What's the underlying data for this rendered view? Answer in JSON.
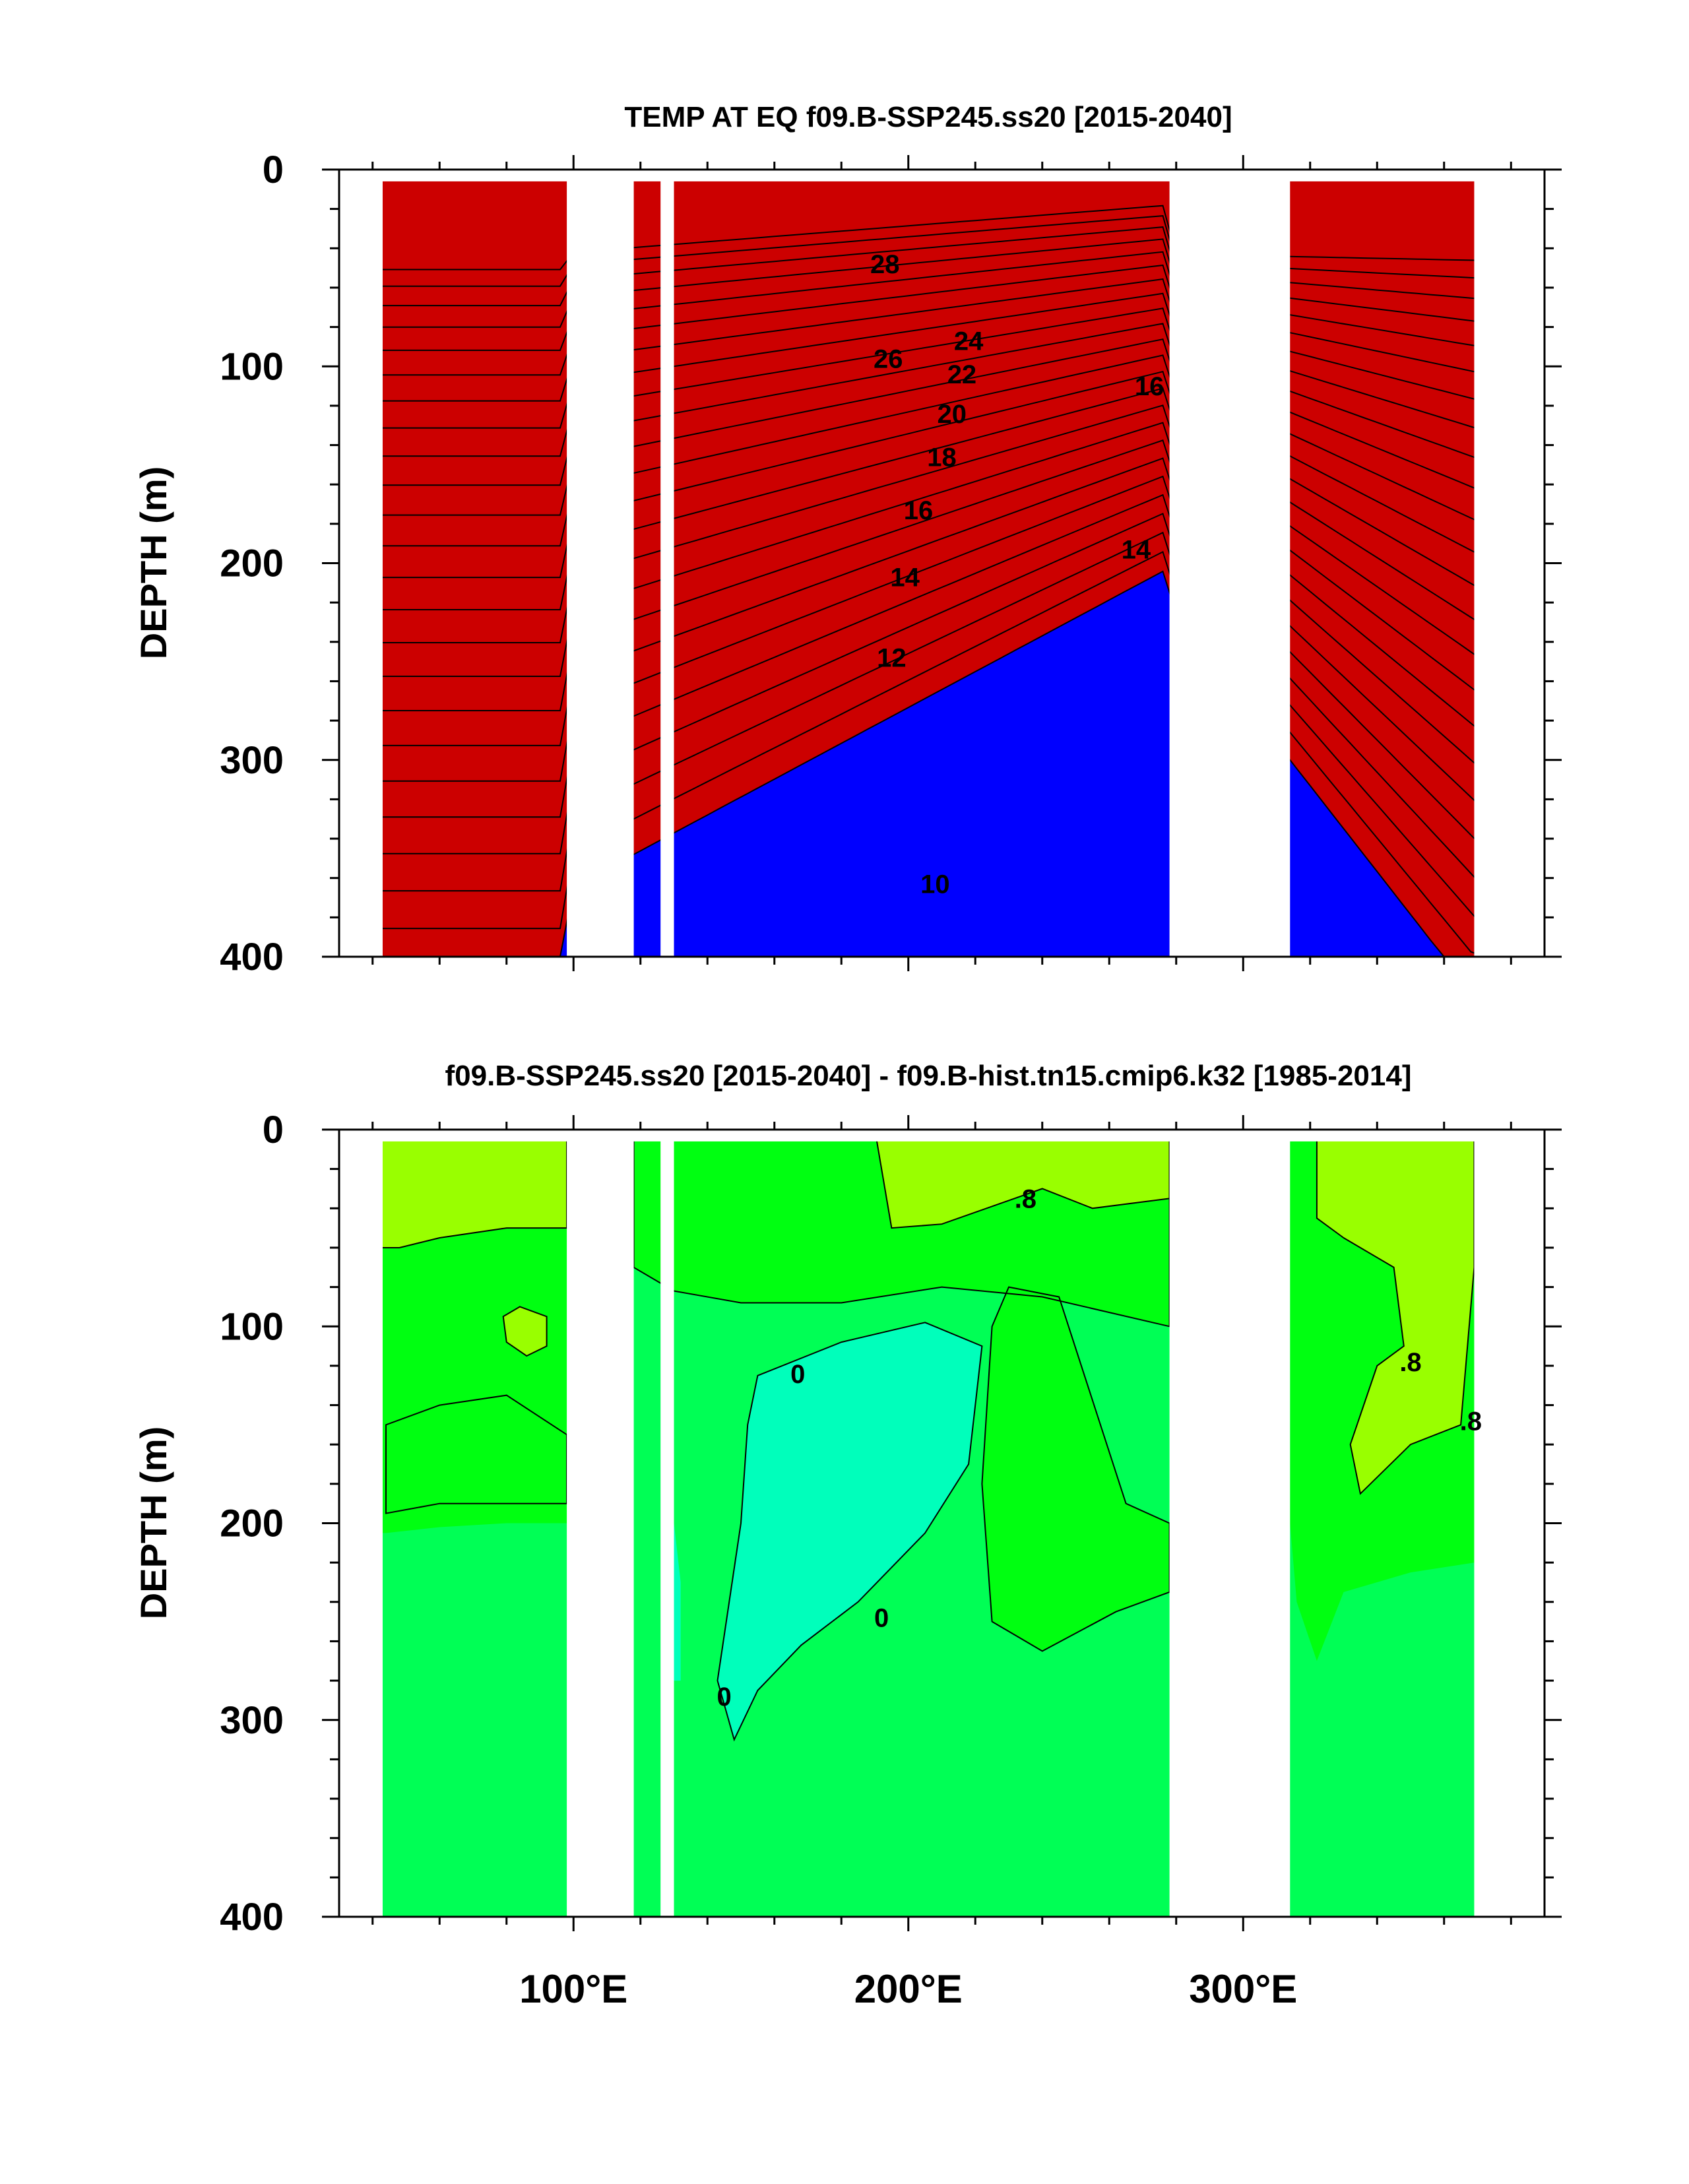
{
  "chart_data": [
    {
      "type": "contour",
      "title": "TEMP AT EQ f09.B-SSP245.ss20 [2015-2040]",
      "ylabel": "DEPTH (m)",
      "xlabel": "",
      "xlim": [
        30,
        390
      ],
      "ylim": [
        400,
        0
      ],
      "x_ticks": [
        100,
        200,
        300
      ],
      "x_tick_labels": [
        "",
        "",
        ""
      ],
      "y_ticks": [
        0,
        100,
        200,
        300,
        400
      ],
      "y_tick_labels": [
        "0",
        "100",
        "200",
        "300",
        "400"
      ],
      "land_gaps_lon": [
        [
          98,
          118
        ],
        [
          126,
          130
        ],
        [
          278,
          314
        ]
      ],
      "data_lon_range": [
        43,
        369
      ],
      "contour_interval": 1,
      "contour_labels": [
        {
          "text": "28",
          "lon": 193,
          "depth": 48
        },
        {
          "text": "26",
          "lon": 194,
          "depth": 96
        },
        {
          "text": "24",
          "lon": 218,
          "depth": 87
        },
        {
          "text": "22",
          "lon": 216,
          "depth": 104
        },
        {
          "text": "20",
          "lon": 213,
          "depth": 124
        },
        {
          "text": "18",
          "lon": 210,
          "depth": 146
        },
        {
          "text": "16",
          "lon": 203,
          "depth": 173
        },
        {
          "text": "16",
          "lon": 272,
          "depth": 110
        },
        {
          "text": "14",
          "lon": 199,
          "depth": 207
        },
        {
          "text": "14",
          "lon": 268,
          "depth": 193
        },
        {
          "text": "12",
          "lon": 195,
          "depth": 248
        },
        {
          "text": "10",
          "lon": 208,
          "depth": 363
        }
      ]
    },
    {
      "type": "contour",
      "title": "f09.B-SSP245.ss20 [2015-2040] - f09.B-hist.tn15.cmip6.k32 [1985-2014]",
      "ylabel": "DEPTH (m)",
      "xlabel": "",
      "xlim": [
        30,
        390
      ],
      "ylim": [
        400,
        0
      ],
      "x_ticks": [
        100,
        200,
        300
      ],
      "x_tick_labels": [
        "100°E",
        "200°E",
        "300°E"
      ],
      "y_ticks": [
        0,
        100,
        200,
        300,
        400
      ],
      "y_tick_labels": [
        "0",
        "100",
        "200",
        "300",
        "400"
      ],
      "land_gaps_lon": [
        [
          98,
          118
        ],
        [
          126,
          130
        ],
        [
          278,
          314
        ]
      ],
      "data_lon_range": [
        43,
        369
      ],
      "contour_labels": [
        {
          "text": ".8",
          "lon": 235,
          "depth": 35
        },
        {
          "text": "0",
          "lon": 167,
          "depth": 124
        },
        {
          "text": "0",
          "lon": 192,
          "depth": 248
        },
        {
          "text": "0",
          "lon": 145,
          "depth": 288
        },
        {
          "text": ".8",
          "lon": 350,
          "depth": 118
        },
        {
          "text": ".8",
          "lon": 368,
          "depth": 148
        }
      ]
    }
  ],
  "colors": {
    "t_levels": [
      "#0000ff",
      "#1f5fff",
      "#1493ff",
      "#00b3ff",
      "#00cbff",
      "#00e1ff",
      "#2af0ff",
      "#00ffff",
      "#00ffcc",
      "#00ff99",
      "#00ff50",
      "#33ee00",
      "#99ff33",
      "#eaff33",
      "#ffff00",
      "#ffd700",
      "#ffbb33",
      "#ffa533",
      "#ff8c33",
      "#ff7f1e",
      "#ff6a14",
      "#ff4c0a",
      "#ff3200",
      "#e81000",
      "#cc0000"
    ],
    "d_green": "#00ff55",
    "d_mid": "#00ff11",
    "d_lime": "#99ff00",
    "d_cyan": "#00ffbb",
    "d_lightgreen": "#33ff33"
  }
}
